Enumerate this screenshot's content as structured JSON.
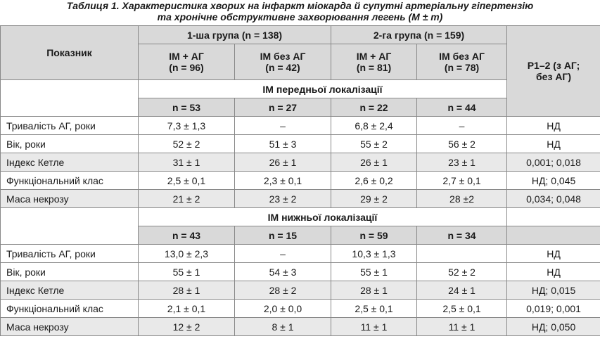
{
  "caption": {
    "line1": "Таблиця 1. Характеристика хворих на інфаркт міокарда й супутні артеріальну гіпертензію",
    "line2": "та хронічне обструктивне захворювання легень (M ± m)"
  },
  "header": {
    "indicator": "Показник",
    "group1": "1-ша група (n = 138)",
    "group2": "2-га група (n = 159)",
    "p_col_line1": "P1–2 (з АГ;",
    "p_col_line2": "без АГ)",
    "subcols": [
      {
        "line1": "ІМ + АГ",
        "line2": "(n = 96)"
      },
      {
        "line1": "ІМ без АГ",
        "line2": "(n = 42)"
      },
      {
        "line1": "ІМ + АГ",
        "line2": "(n = 81)"
      },
      {
        "line1": "ІМ без АГ",
        "line2": "(n = 78)"
      }
    ]
  },
  "sections": [
    {
      "title": "ІМ передньої локалізації",
      "n": [
        "n = 53",
        "n = 27",
        "n = 22",
        "n = 44"
      ],
      "rows": [
        {
          "label": "Тривалість АГ, роки",
          "v1": "7,3 ± 1,3",
          "v2": "–",
          "v3": "6,8 ± 2,4",
          "v4": "–",
          "p": "НД"
        },
        {
          "label": "Вік, роки",
          "v1": "52 ± 2",
          "v2": "51 ± 3",
          "v3": "55 ± 2",
          "v4": "56 ± 2",
          "p": "НД"
        },
        {
          "label": "Індекс Кетле",
          "v1": "31 ± 1",
          "v2": "26 ± 1",
          "v3": "26 ± 1",
          "v4": "23 ± 1",
          "p": "0,001; 0,018"
        },
        {
          "label": "Функціональний клас",
          "v1": "2,5 ± 0,1",
          "v2": "2,3 ± 0,1",
          "v3": "2,6 ± 0,2",
          "v4": "2,7 ± 0,1",
          "p": "НД; 0,045"
        },
        {
          "label": "Маса некрозу",
          "v1": "21 ± 2",
          "v2": "23 ± 2",
          "v3": "29 ± 2",
          "v4": "28 ±2",
          "p": "0,034; 0,048"
        }
      ]
    },
    {
      "title": "ІМ нижньої локалізації",
      "n": [
        "n = 43",
        "n = 15",
        "n = 59",
        "n = 34"
      ],
      "rows": [
        {
          "label": "Тривалість АГ, роки",
          "v1": "13,0 ± 2,3",
          "v2": "–",
          "v3": "10,3 ± 1,3",
          "v4": "",
          "p": "НД"
        },
        {
          "label": "Вік, роки",
          "v1": "55 ± 1",
          "v2": "54 ± 3",
          "v3": "55 ± 1",
          "v4": "52 ± 2",
          "p": "НД"
        },
        {
          "label": "Індекс Кетле",
          "v1": "28 ± 1",
          "v2": "28 ± 2",
          "v3": "28 ± 1",
          "v4": "24 ± 1",
          "p": "НД; 0,015"
        },
        {
          "label": "Функціональний клас",
          "v1": "2,1 ± 0,1",
          "v2": "2,0 ± 0,0",
          "v3": "2,5 ± 0,1",
          "v4": "2,5 ± 0,1",
          "p": "0,019; 0,001"
        },
        {
          "label": "Маса некрозу",
          "v1": "12 ± 2",
          "v2": "8 ± 1",
          "v3": "11 ± 1",
          "v4": "11 ± 1",
          "p": "НД; 0,050"
        }
      ]
    }
  ]
}
